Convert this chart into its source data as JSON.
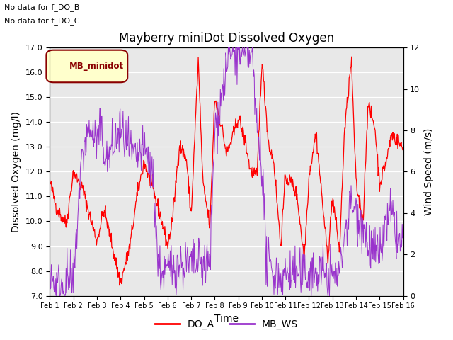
{
  "title": "Mayberry miniDot Dissolved Oxygen",
  "xlabel": "Time",
  "ylabel_left": "Dissolved Oxygen (mg/l)",
  "ylabel_right": "Wind Speed (m/s)",
  "ylim_left": [
    7.0,
    17.0
  ],
  "ylim_right": [
    0,
    12
  ],
  "yticks_left": [
    7.0,
    8.0,
    9.0,
    10.0,
    11.0,
    12.0,
    13.0,
    14.0,
    15.0,
    16.0,
    17.0
  ],
  "yticks_right": [
    0,
    2,
    4,
    6,
    8,
    10,
    12
  ],
  "xtick_labels": [
    "Feb 1",
    "Feb 2",
    "Feb 3",
    "Feb 4",
    "Feb 5",
    "Feb 6",
    "Feb 7",
    "Feb 8",
    "Feb 9",
    "Feb 10",
    "Feb 11",
    "Feb 12",
    "Feb 13",
    "Feb 14",
    "Feb 15",
    "Feb 16"
  ],
  "annotations": [
    "No data for f_DO_B",
    "No data for f_DO_C"
  ],
  "legend_box_label": "MB_minidot",
  "legend_box_facecolor": "#ffffcc",
  "legend_box_edgecolor": "#8b0000",
  "line_DO_A_color": "#ff0000",
  "line_MB_WS_color": "#9933cc",
  "background_color": "#e8e8e8",
  "title_fontsize": 12,
  "axis_label_fontsize": 10,
  "tick_fontsize": 8,
  "legend_bottom_labels": [
    "DO_A",
    "MB_WS"
  ],
  "n_days": 15,
  "pts_per_day": 48,
  "DO_A_key_times": [
    0,
    0.3,
    0.7,
    1.0,
    1.4,
    1.7,
    2.0,
    2.3,
    2.7,
    3.0,
    3.4,
    3.7,
    4.0,
    4.3,
    4.7,
    5.0,
    5.2,
    5.5,
    5.8,
    6.0,
    6.3,
    6.5,
    6.8,
    7.0,
    7.3,
    7.5,
    7.8,
    8.0,
    8.3,
    8.5,
    8.8,
    9.0,
    9.3,
    9.5,
    9.8,
    10.0,
    10.3,
    10.5,
    10.8,
    11.0,
    11.3,
    11.5,
    11.8,
    12.0,
    12.3,
    12.5,
    12.8,
    13.0,
    13.3,
    13.5,
    13.8,
    14.0,
    14.3,
    14.5,
    14.8,
    15.0
  ],
  "DO_A_key_vals": [
    11.6,
    10.5,
    9.9,
    12.0,
    11.3,
    10.2,
    9.2,
    10.5,
    8.8,
    7.5,
    9.0,
    11.0,
    12.4,
    11.5,
    10.2,
    9.0,
    10.0,
    13.1,
    12.5,
    10.2,
    16.5,
    11.5,
    9.8,
    15.0,
    13.8,
    12.7,
    13.5,
    14.2,
    13.2,
    12.1,
    11.8,
    16.5,
    13.0,
    12.5,
    9.0,
    11.8,
    11.5,
    11.0,
    8.5,
    11.8,
    13.6,
    11.5,
    8.5,
    11.0,
    8.8,
    13.5,
    16.5,
    11.5,
    10.0,
    14.7,
    13.8,
    11.5,
    12.5,
    13.5,
    13.2,
    12.9
  ],
  "WS_key_times": [
    0,
    0.1,
    0.3,
    0.5,
    0.8,
    1.0,
    1.3,
    1.5,
    1.7,
    2.0,
    2.2,
    2.4,
    2.6,
    2.8,
    3.0,
    3.2,
    3.4,
    3.6,
    3.8,
    4.0,
    4.2,
    4.4,
    4.6,
    4.8,
    5.0,
    5.3,
    5.6,
    5.9,
    6.2,
    6.5,
    6.8,
    7.0,
    7.2,
    7.4,
    7.6,
    7.8,
    8.0,
    8.2,
    8.4,
    8.6,
    8.7,
    8.8,
    8.9,
    9.0,
    9.2,
    9.4,
    9.6,
    9.8,
    10.0,
    10.3,
    10.6,
    10.9,
    11.0,
    11.3,
    11.5,
    11.7,
    11.9,
    12.0,
    12.3,
    12.5,
    12.8,
    13.0,
    13.3,
    13.5,
    13.8,
    14.0,
    14.3,
    14.5,
    14.8,
    15.0
  ],
  "WS_key_vals": [
    1.5,
    0.8,
    0.5,
    0.5,
    0.8,
    0.5,
    6.0,
    7.5,
    8.0,
    7.5,
    7.8,
    6.5,
    7.0,
    7.5,
    8.0,
    7.5,
    7.0,
    6.5,
    6.8,
    7.0,
    6.5,
    5.5,
    1.5,
    1.0,
    1.2,
    1.5,
    1.5,
    1.5,
    1.5,
    1.5,
    1.5,
    8.0,
    9.0,
    10.5,
    11.5,
    11.8,
    12.0,
    11.5,
    11.8,
    11.5,
    9.5,
    8.0,
    7.5,
    6.5,
    1.5,
    1.2,
    1.0,
    1.0,
    1.0,
    1.2,
    1.0,
    1.0,
    1.2,
    1.0,
    1.2,
    1.0,
    1.0,
    1.0,
    1.0,
    3.0,
    4.5,
    4.0,
    3.5,
    2.5,
    2.0,
    2.0,
    3.5,
    4.0,
    2.5,
    2.5
  ]
}
